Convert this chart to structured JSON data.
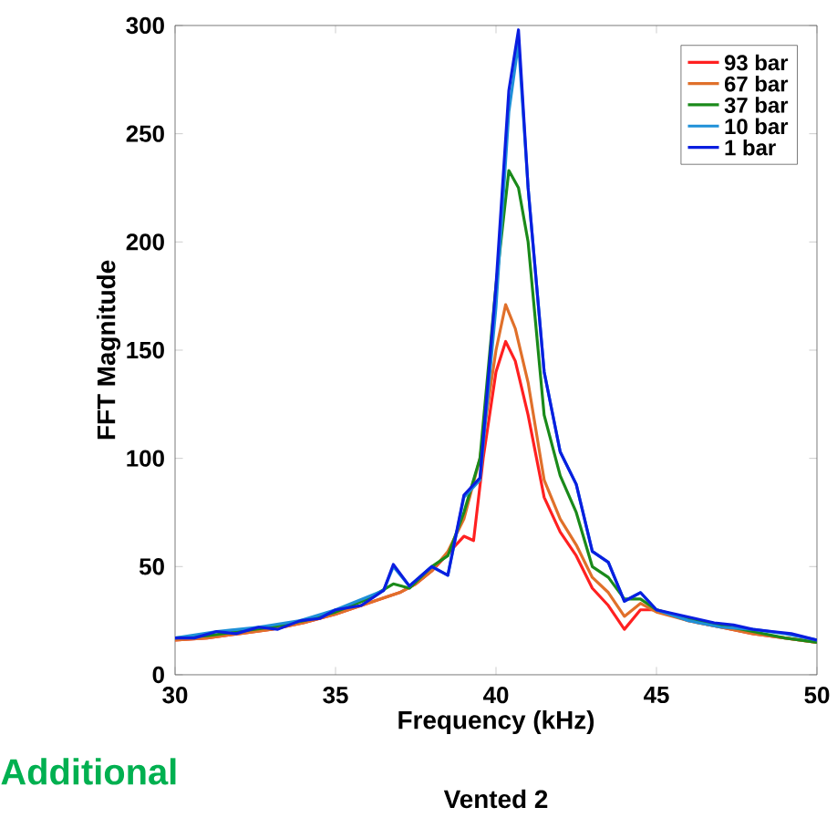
{
  "chart_data": {
    "type": "line",
    "xlabel": "Frequency (kHz)",
    "ylabel": "FFT Magnitude",
    "xlim": [
      30,
      50
    ],
    "ylim": [
      0,
      300
    ],
    "xticks": [
      30,
      35,
      40,
      45,
      50
    ],
    "yticks": [
      0,
      50,
      100,
      150,
      200,
      250,
      300
    ],
    "legend": "top right",
    "line_style": "solid",
    "marker": "none",
    "annotations": [
      "Vented 2",
      "Additional"
    ],
    "series": [
      {
        "name": "93 bar",
        "color": "#ff2020",
        "x": [
          30,
          31,
          32,
          33,
          34,
          35,
          36,
          37,
          37.5,
          38,
          38.5,
          39,
          39.3,
          39.6,
          40,
          40.3,
          40.6,
          41,
          41.5,
          42,
          42.5,
          43,
          43.5,
          44,
          44.5,
          45,
          46,
          47,
          48,
          49,
          50
        ],
        "values": [
          16,
          17,
          19,
          21,
          24,
          28,
          33,
          38,
          42,
          48,
          56,
          64,
          62,
          100,
          140,
          154,
          145,
          120,
          82,
          66,
          55,
          40,
          32,
          21,
          30,
          30,
          25,
          22,
          19,
          17,
          15
        ]
      },
      {
        "name": "67 bar",
        "color": "#e0702a",
        "x": [
          30,
          31,
          32,
          33,
          34,
          35,
          36,
          37,
          37.5,
          38,
          38.5,
          39,
          39.5,
          40,
          40.3,
          40.6,
          41,
          41.5,
          42,
          42.5,
          43,
          43.5,
          44,
          44.5,
          45,
          46,
          47,
          48,
          49,
          50
        ],
        "values": [
          16,
          17,
          19,
          21,
          24,
          28,
          33,
          38,
          42,
          48,
          57,
          72,
          100,
          150,
          171,
          160,
          135,
          90,
          72,
          60,
          45,
          38,
          27,
          33,
          29,
          25,
          22,
          19,
          17,
          15
        ]
      },
      {
        "name": "37 bar",
        "color": "#1a8a1a",
        "x": [
          30,
          31,
          32,
          33,
          34,
          35,
          36,
          36.8,
          37.3,
          38,
          38.5,
          39,
          39.5,
          40,
          40.4,
          40.7,
          41,
          41.5,
          42,
          42.5,
          43,
          43.5,
          44,
          44.5,
          45,
          46,
          47,
          48,
          49,
          50
        ],
        "values": [
          17,
          18,
          20,
          22,
          25,
          29,
          35,
          42,
          40,
          50,
          55,
          75,
          100,
          180,
          233,
          225,
          200,
          120,
          92,
          75,
          50,
          45,
          35,
          35,
          30,
          26,
          23,
          20,
          17,
          15
        ]
      },
      {
        "name": "10 bar",
        "color": "#1e90d8",
        "x": [
          30,
          31.3,
          32.6,
          33.9,
          35,
          36.5,
          36.8,
          37.3,
          38,
          38.5,
          39,
          39.5,
          40,
          40.4,
          40.7,
          41,
          41.5,
          42,
          42.5,
          43,
          43.5,
          44,
          44.5,
          45,
          46,
          47,
          48,
          49,
          50
        ],
        "values": [
          17,
          20,
          22,
          25,
          30,
          39,
          50,
          41,
          50,
          46,
          82,
          90,
          170,
          260,
          292,
          225,
          140,
          103,
          88,
          57,
          52,
          34,
          38,
          30,
          25,
          22,
          21,
          19,
          16
        ]
      },
      {
        "name": "1 bar",
        "color": "#0a1ee0",
        "x": [
          30,
          30.6,
          31.3,
          31.9,
          32.6,
          33.2,
          33.9,
          34.5,
          35,
          35.8,
          36.5,
          36.8,
          37.3,
          38,
          38.5,
          39,
          39.5,
          40,
          40.4,
          40.7,
          41,
          41.5,
          42,
          42.5,
          43,
          43.5,
          44,
          44.5,
          45,
          45.6,
          46.2,
          46.8,
          47.4,
          48,
          48.6,
          49.2,
          50
        ],
        "values": [
          17,
          17,
          20,
          19,
          22,
          21,
          25,
          26,
          30,
          32,
          39,
          51,
          41,
          50,
          46,
          83,
          91,
          180,
          270,
          298,
          225,
          140,
          103,
          88,
          57,
          52,
          34,
          38,
          30,
          28,
          26,
          24,
          23,
          21,
          20,
          19,
          16
        ]
      }
    ]
  }
}
